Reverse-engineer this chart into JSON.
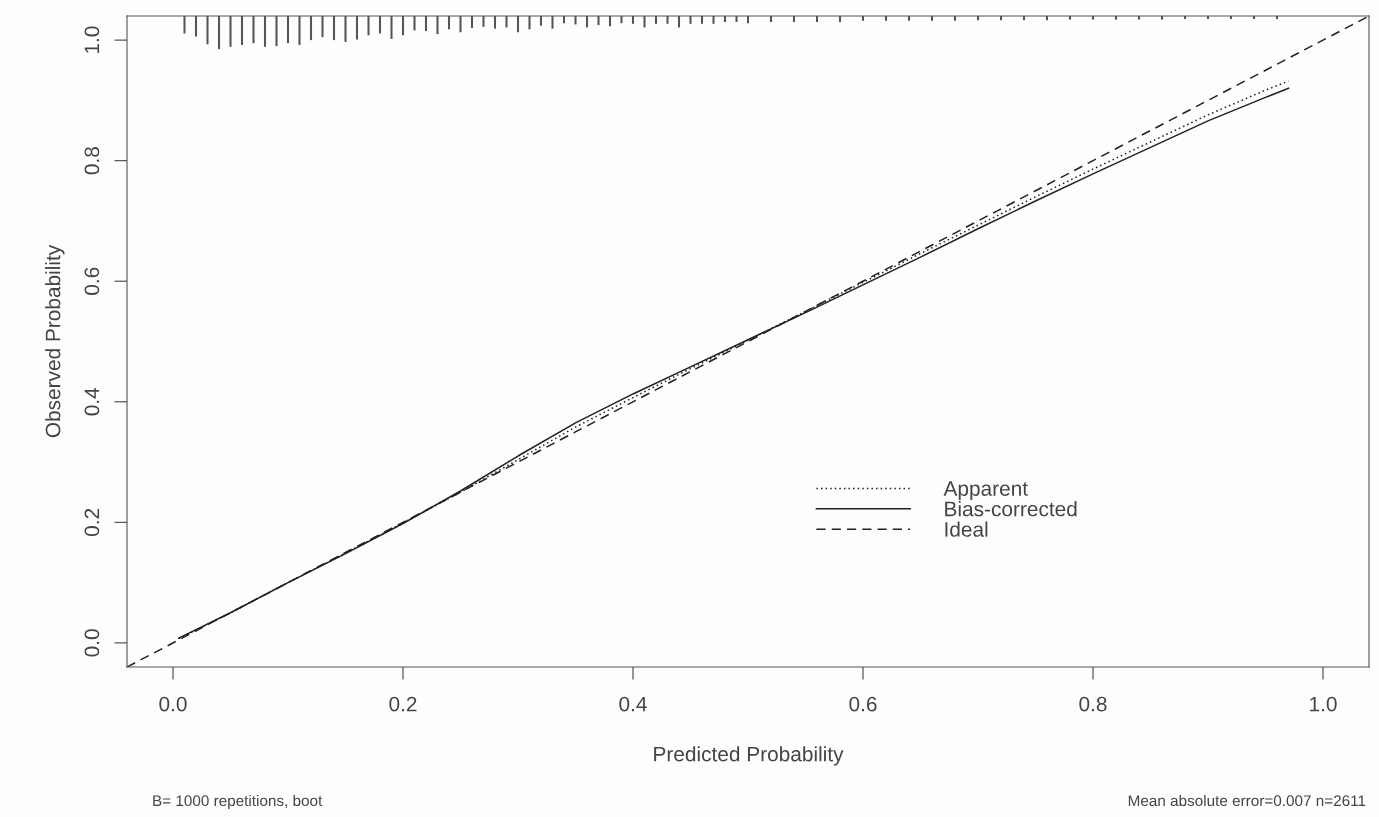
{
  "chart_data": {
    "type": "line",
    "xlabel": "Predicted Probability",
    "ylabel": "Observed Probability",
    "xlim": [
      -0.04,
      1.04
    ],
    "ylim": [
      -0.04,
      1.04
    ],
    "xticks": [
      {
        "value": 0,
        "label": "0.0"
      },
      0.2,
      0.4,
      0.6,
      0.8,
      {
        "value": 1,
        "label": "1.0"
      }
    ],
    "yticks": [
      {
        "value": 0,
        "label": "0.0"
      },
      0.2,
      0.4,
      0.6,
      0.8,
      {
        "value": 1,
        "label": "1.0"
      }
    ],
    "grid": false,
    "legend": "bottom right",
    "series": [
      {
        "name": "Apparent",
        "color": "#222222",
        "line_style": "dotted",
        "x": [
          0.005,
          0.05,
          0.1,
          0.15,
          0.2,
          0.25,
          0.3,
          0.35,
          0.4,
          0.45,
          0.5,
          0.55,
          0.6,
          0.65,
          0.7,
          0.75,
          0.8,
          0.85,
          0.9,
          0.95,
          0.97
        ],
        "values": [
          0.007,
          0.05,
          0.1,
          0.149,
          0.199,
          0.25,
          0.304,
          0.358,
          0.407,
          0.455,
          0.502,
          0.55,
          0.598,
          0.646,
          0.693,
          0.74,
          0.786,
          0.831,
          0.876,
          0.917,
          0.932
        ]
      },
      {
        "name": "Bias-corrected",
        "color": "#222222",
        "line_style": "solid",
        "x": [
          0.005,
          0.05,
          0.1,
          0.15,
          0.2,
          0.25,
          0.3,
          0.35,
          0.4,
          0.45,
          0.5,
          0.55,
          0.6,
          0.65,
          0.7,
          0.75,
          0.8,
          0.85,
          0.9,
          0.95,
          0.97
        ],
        "values": [
          0.008,
          0.05,
          0.1,
          0.148,
          0.198,
          0.252,
          0.31,
          0.365,
          0.413,
          0.458,
          0.503,
          0.548,
          0.594,
          0.64,
          0.687,
          0.733,
          0.778,
          0.822,
          0.866,
          0.905,
          0.92
        ]
      },
      {
        "name": "Ideal",
        "color": "#222222",
        "line_style": "dashed",
        "x": [
          -0.04,
          1.04
        ],
        "values": [
          -0.04,
          1.04
        ]
      },
      {
        "type": "bar",
        "color": "#555555",
        "base": [
          1.011,
          1.006,
          0.993,
          0.985,
          0.989,
          0.992,
          0.995,
          0.989,
          0.99,
          0.995,
          0.992,
          1.0,
          1.005,
          1.0,
          0.997,
          1.001,
          1.008,
          1.011,
          1.002,
          1.008,
          1.016,
          1.015,
          1.01,
          1.018,
          1.013,
          1.02,
          1.022,
          1.019,
          1.021,
          1.013,
          1.018,
          1.024,
          1.019,
          1.028,
          1.026,
          1.021,
          1.025,
          1.023,
          1.028,
          1.027,
          1.021,
          1.027,
          1.027,
          1.021,
          1.027,
          1.027,
          1.027,
          1.03,
          1.03,
          1.028,
          1.03,
          1.03,
          1.03,
          1.03,
          1.032,
          1.032,
          1.032,
          1.032,
          1.032,
          1.033,
          1.033,
          1.033,
          1.033,
          1.034,
          1.034,
          1.034,
          1.034,
          1.034,
          1.035,
          1.035,
          1.035,
          1.035,
          1.035
        ],
        "x": [
          0.01,
          0.02,
          0.03,
          0.04,
          0.05,
          0.06,
          0.07,
          0.08,
          0.09,
          0.1,
          0.11,
          0.12,
          0.13,
          0.14,
          0.15,
          0.16,
          0.17,
          0.18,
          0.19,
          0.2,
          0.21,
          0.22,
          0.23,
          0.24,
          0.25,
          0.26,
          0.27,
          0.28,
          0.29,
          0.3,
          0.31,
          0.32,
          0.33,
          0.34,
          0.35,
          0.36,
          0.37,
          0.38,
          0.39,
          0.4,
          0.41,
          0.42,
          0.43,
          0.44,
          0.45,
          0.46,
          0.47,
          0.48,
          0.49,
          0.5,
          0.52,
          0.54,
          0.56,
          0.58,
          0.6,
          0.62,
          0.64,
          0.66,
          0.68,
          0.7,
          0.72,
          0.74,
          0.76,
          0.78,
          0.8,
          0.82,
          0.84,
          0.86,
          0.88,
          0.9,
          0.92,
          0.94,
          0.96
        ],
        "values": [
          0.029,
          0.034,
          0.047,
          0.055,
          0.051,
          0.048,
          0.045,
          0.051,
          0.05,
          0.045,
          0.048,
          0.04,
          0.035,
          0.04,
          0.043,
          0.039,
          0.032,
          0.029,
          0.038,
          0.032,
          0.024,
          0.025,
          0.03,
          0.022,
          0.027,
          0.02,
          0.018,
          0.021,
          0.019,
          0.027,
          0.022,
          0.016,
          0.021,
          0.012,
          0.014,
          0.019,
          0.015,
          0.017,
          0.012,
          0.013,
          0.019,
          0.013,
          0.013,
          0.019,
          0.013,
          0.013,
          0.013,
          0.01,
          0.01,
          0.012,
          0.01,
          0.01,
          0.01,
          0.01,
          0.008,
          0.008,
          0.008,
          0.008,
          0.008,
          0.007,
          0.007,
          0.007,
          0.007,
          0.006,
          0.006,
          0.006,
          0.006,
          0.006,
          0.005,
          0.005,
          0.005,
          0.005,
          0.005
        ]
      }
    ],
    "annotations": [
      "B= 1000 repetitions, boot",
      "Mean absolute error=0.007 n=2611"
    ]
  }
}
